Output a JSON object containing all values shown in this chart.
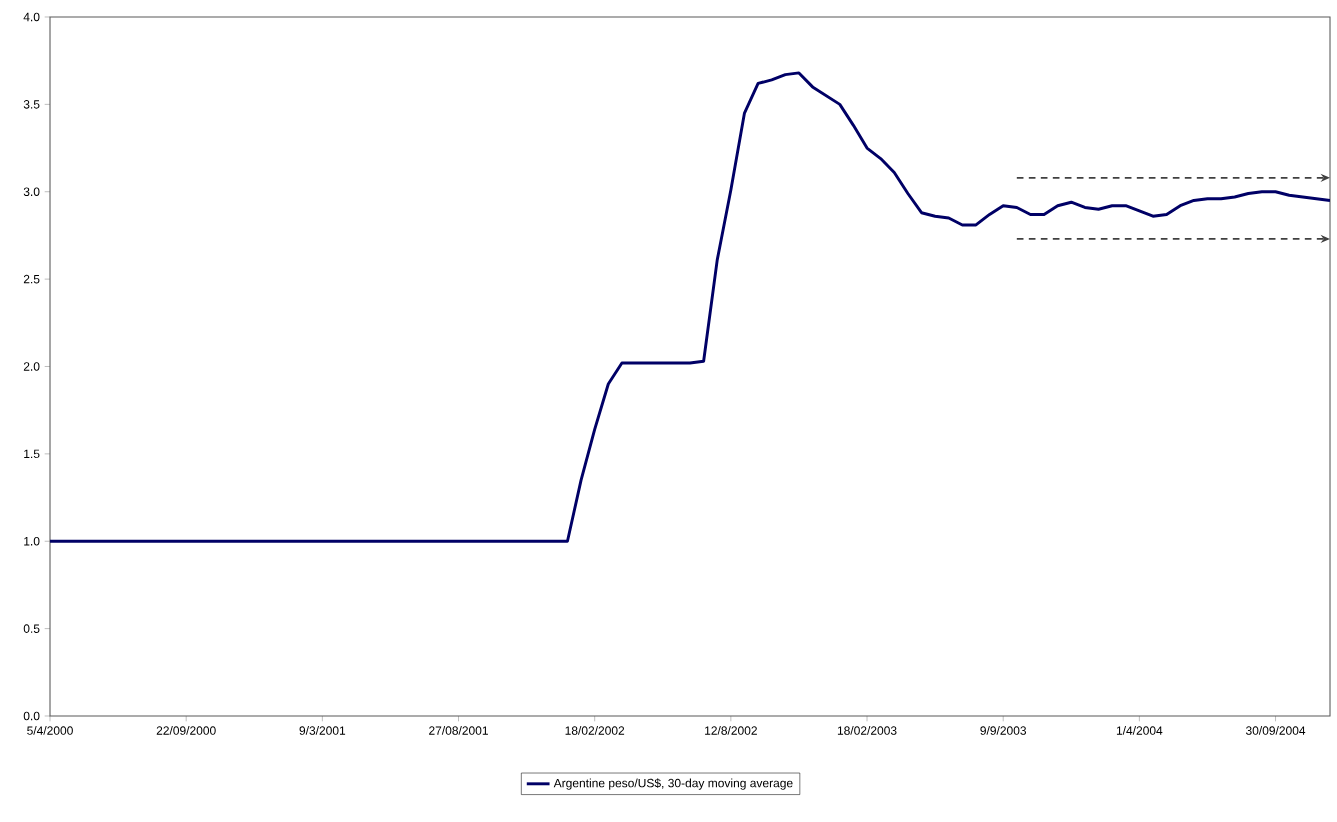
{
  "chart_data": {
    "type": "line",
    "categories": [
      "5/4/2000",
      null,
      null,
      null,
      null,
      null,
      null,
      null,
      null,
      null,
      "22/09/2000",
      null,
      null,
      null,
      null,
      null,
      null,
      null,
      null,
      null,
      "9/3/2001",
      null,
      null,
      null,
      null,
      null,
      null,
      null,
      null,
      null,
      "27/08/2001",
      null,
      null,
      null,
      null,
      null,
      null,
      null,
      null,
      null,
      "18/02/2002",
      null,
      null,
      null,
      null,
      null,
      null,
      null,
      null,
      null,
      "12/8/2002",
      null,
      null,
      null,
      null,
      null,
      null,
      null,
      null,
      null,
      "18/02/2003",
      null,
      null,
      null,
      null,
      null,
      null,
      null,
      null,
      null,
      "9/9/2003",
      null,
      null,
      null,
      null,
      null,
      null,
      null,
      null,
      null,
      "1/4/2004",
      null,
      null,
      null,
      null,
      null,
      null,
      null,
      null,
      null,
      "30/09/2004",
      null,
      null,
      null,
      null
    ],
    "series": [
      {
        "name": "Argentine peso/US$, 30-day moving average",
        "color": "#000066",
        "line_style": "solid",
        "values": [
          1.0,
          1.0,
          1.0,
          1.0,
          1.0,
          1.0,
          1.0,
          1.0,
          1.0,
          1.0,
          1.0,
          1.0,
          1.0,
          1.0,
          1.0,
          1.0,
          1.0,
          1.0,
          1.0,
          1.0,
          1.0,
          1.0,
          1.0,
          1.0,
          1.0,
          1.0,
          1.0,
          1.0,
          1.0,
          1.0,
          1.0,
          1.0,
          1.0,
          1.0,
          1.0,
          1.0,
          1.0,
          1.0,
          1.0,
          1.35,
          1.64,
          1.9,
          2.02,
          2.02,
          2.02,
          2.02,
          2.02,
          2.02,
          2.03,
          2.61,
          3.01,
          3.45,
          3.62,
          3.64,
          3.67,
          3.68,
          3.6,
          3.55,
          3.5,
          3.38,
          3.25,
          3.19,
          3.11,
          2.99,
          2.88,
          2.86,
          2.85,
          2.81,
          2.81,
          2.87,
          2.92,
          2.91,
          2.87,
          2.87,
          2.92,
          2.94,
          2.91,
          2.9,
          2.92,
          2.92,
          2.89,
          2.86,
          2.87,
          2.92,
          2.95,
          2.96,
          2.96,
          2.97,
          2.99,
          3.0,
          3.0,
          2.98,
          2.97,
          2.96,
          2.95
        ]
      },
      {
        "color": "#404040",
        "line_style": "dashed",
        "values": [
          null,
          null,
          null,
          null,
          null,
          null,
          null,
          null,
          null,
          null,
          null,
          null,
          null,
          null,
          null,
          null,
          null,
          null,
          null,
          null,
          null,
          null,
          null,
          null,
          null,
          null,
          null,
          null,
          null,
          null,
          null,
          null,
          null,
          null,
          null,
          null,
          null,
          null,
          null,
          null,
          null,
          null,
          null,
          null,
          null,
          null,
          null,
          null,
          null,
          null,
          null,
          null,
          null,
          null,
          null,
          null,
          null,
          null,
          null,
          null,
          null,
          null,
          null,
          null,
          null,
          null,
          null,
          null,
          null,
          null,
          null,
          3.08,
          3.08,
          3.08,
          3.08,
          3.08,
          3.08,
          3.08,
          3.08,
          3.08,
          3.08,
          3.08,
          3.08,
          3.08,
          3.08,
          3.08,
          3.08,
          3.08,
          3.08,
          3.08,
          3.08,
          3.08,
          3.08,
          3.08,
          3.08
        ]
      },
      {
        "color": "#404040",
        "line_style": "dashed",
        "values": [
          null,
          null,
          null,
          null,
          null,
          null,
          null,
          null,
          null,
          null,
          null,
          null,
          null,
          null,
          null,
          null,
          null,
          null,
          null,
          null,
          null,
          null,
          null,
          null,
          null,
          null,
          null,
          null,
          null,
          null,
          null,
          null,
          null,
          null,
          null,
          null,
          null,
          null,
          null,
          null,
          null,
          null,
          null,
          null,
          null,
          null,
          null,
          null,
          null,
          null,
          null,
          null,
          null,
          null,
          null,
          null,
          null,
          null,
          null,
          null,
          null,
          null,
          null,
          null,
          null,
          null,
          null,
          null,
          null,
          null,
          null,
          2.73,
          2.73,
          2.73,
          2.73,
          2.73,
          2.73,
          2.73,
          2.73,
          2.73,
          2.73,
          2.73,
          2.73,
          2.73,
          2.73,
          2.73,
          2.73,
          2.73,
          2.73,
          2.73,
          2.73,
          2.73,
          2.73,
          2.73,
          2.73
        ]
      }
    ],
    "ylim": [
      0,
      4
    ],
    "yticks": [
      {
        "value": 0,
        "label": "0.0"
      },
      {
        "value": 0.5,
        "label": "0.5"
      },
      {
        "value": 1,
        "label": "1.0"
      },
      {
        "value": 1.5,
        "label": "1.5"
      },
      {
        "value": 2,
        "label": "2.0"
      },
      {
        "value": 2.5,
        "label": "2.5"
      },
      {
        "value": 3,
        "label": "3.0"
      },
      {
        "value": 3.5,
        "label": "3.5"
      },
      {
        "value": 4,
        "label": "4.0"
      }
    ],
    "legend": "bottom"
  }
}
